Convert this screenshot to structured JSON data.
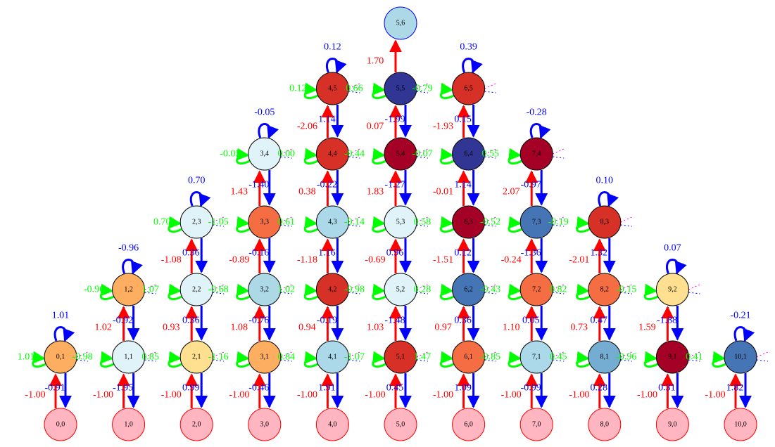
{
  "colors": {
    "up": "#ff0000",
    "down": "#0000ff",
    "self": "#00ff00",
    "loop": "#0000ff",
    "dot": "#ff00ff",
    "bottom_fill": "#ffb6c1",
    "bottom_stroke": "#ff0000",
    "default_stroke": "#000000",
    "top_stroke": "#0000ff"
  },
  "palette": {
    "a": "#a50026",
    "b": "#d73027",
    "c": "#f46d43",
    "d": "#fdae61",
    "e": "#fee090",
    "f": "#e0f3f8",
    "g": "#abd9e9",
    "h": "#74add1",
    "i": "#4575b4",
    "j": "#313695",
    "k": "#add8e6",
    "p": "#ffb6c1"
  },
  "nodes": [
    {
      "id": "0,0",
      "c": "p"
    },
    {
      "id": "1,0",
      "c": "p"
    },
    {
      "id": "2,0",
      "c": "p"
    },
    {
      "id": "3,0",
      "c": "p"
    },
    {
      "id": "4,0",
      "c": "p"
    },
    {
      "id": "5,0",
      "c": "p"
    },
    {
      "id": "6,0",
      "c": "p"
    },
    {
      "id": "7,0",
      "c": "p"
    },
    {
      "id": "8,0",
      "c": "p"
    },
    {
      "id": "9,0",
      "c": "p"
    },
    {
      "id": "10,0",
      "c": "p"
    },
    {
      "id": "0,1",
      "c": "d",
      "loop": "1.01",
      "self": "1.01",
      "right": "-0.98",
      "up": "-1.00",
      "down": "-0.91"
    },
    {
      "id": "1,1",
      "c": "f",
      "right": "0.85",
      "up": "-1.00",
      "down": "-1.95"
    },
    {
      "id": "2,1",
      "c": "e",
      "right": "-1.16",
      "up": "-1.00",
      "down": "0.99"
    },
    {
      "id": "3,1",
      "c": "d",
      "right": "0.84",
      "up": "-1.00",
      "down": "-0.46"
    },
    {
      "id": "4,1",
      "c": "g",
      "right": "-1.07",
      "up": "-1.00",
      "down": "1.91"
    },
    {
      "id": "5,1",
      "c": "b",
      "right": "1.47",
      "up": "-1.00",
      "down": "0.45"
    },
    {
      "id": "6,1",
      "c": "c",
      "right": "-0.85",
      "up": "-1.00",
      "down": "1.09"
    },
    {
      "id": "7,1",
      "c": "g",
      "right": "0.45",
      "up": "-1.00",
      "down": "-0.99"
    },
    {
      "id": "8,1",
      "c": "h",
      "right": "-0.96",
      "up": "-1.00",
      "down": "0.28"
    },
    {
      "id": "9,1",
      "c": "a",
      "right": "0.41",
      "up": "-1.00",
      "down": "0.31"
    },
    {
      "id": "10,1",
      "c": "i",
      "loop": "-0.21",
      "up": "-1.00",
      "down": "1.82"
    },
    {
      "id": "1,2",
      "c": "d",
      "loop": "-0.96",
      "self": "-0.96",
      "right": "1.07",
      "up": "1.02",
      "down": "-0.92"
    },
    {
      "id": "2,2",
      "c": "f",
      "right": "-0.68",
      "up": "0.93",
      "down": "0.36"
    },
    {
      "id": "3,2",
      "c": "k",
      "right": "1.02",
      "up": "1.08",
      "down": "-0.76"
    },
    {
      "id": "4,2",
      "c": "b",
      "right": "-0.98",
      "up": "0.94",
      "down": "-0.19"
    },
    {
      "id": "5,2",
      "c": "f",
      "right": "0.28",
      "up": "1.03",
      "down": "-1.48"
    },
    {
      "id": "6,2",
      "c": "i",
      "right": "-0.43",
      "up": "0.97",
      "down": "0.36"
    },
    {
      "id": "7,2",
      "c": "c",
      "right": "0.82",
      "up": "1.10",
      "down": "0.05"
    },
    {
      "id": "8,2",
      "c": "c",
      "right": "-0.15",
      "up": "0.73",
      "down": "0.47"
    },
    {
      "id": "9,2",
      "c": "e",
      "loop": "0.07",
      "up": "1.59",
      "down": "-1.88"
    },
    {
      "id": "2,3",
      "c": "f",
      "loop": "0.70",
      "self": "0.70",
      "right": "-1.05",
      "up": "-1.08",
      "down": "0.36"
    },
    {
      "id": "3,3",
      "c": "c",
      "right": "0.61",
      "up": "-0.89",
      "down": "-0.16"
    },
    {
      "id": "4,3",
      "c": "g",
      "right": "-0.14",
      "up": "-1.18",
      "down": "1.16"
    },
    {
      "id": "5,3",
      "c": "f",
      "right": "0.58",
      "up": "-0.69",
      "down": "0.96"
    },
    {
      "id": "6,3",
      "c": "a",
      "right": "-0.52",
      "up": "-1.51",
      "down": "0.12"
    },
    {
      "id": "7,3",
      "c": "i",
      "right": "-0.19",
      "up": "-0.24",
      "down": "-1.36"
    },
    {
      "id": "8,3",
      "c": "b",
      "loop": "0.10",
      "up": "-2.01",
      "down": "1.32"
    },
    {
      "id": "3,4",
      "c": "f",
      "loop": "-0.05",
      "self": "-0.05",
      "right": "0.00",
      "up": "1.43",
      "down": "-1.40"
    },
    {
      "id": "4,4",
      "c": "b",
      "right": "-0.44",
      "up": "0.38",
      "down": "-0.22"
    },
    {
      "id": "5,4",
      "c": "a",
      "right": "-0.07",
      "up": "1.83",
      "down": "-1.27"
    },
    {
      "id": "6,4",
      "c": "j",
      "right": "0.55",
      "up": "-0.01",
      "down": "1.14"
    },
    {
      "id": "7,4",
      "c": "a",
      "loop": "-0.28",
      "up": "2.07",
      "down": "-0.97"
    },
    {
      "id": "4,5",
      "c": "b",
      "loop": "0.12",
      "self": "0.12",
      "right": "0.66",
      "up": "-2.06",
      "down": "1.14"
    },
    {
      "id": "5,5",
      "c": "j",
      "right": "-0.79",
      "up": "0.07",
      "down": "-1.99"
    },
    {
      "id": "6,5",
      "c": "b",
      "loop": "0.39",
      "up": "-1.93",
      "down": "0.15"
    },
    {
      "id": "5,6",
      "c": "k",
      "up": "1.70"
    }
  ]
}
